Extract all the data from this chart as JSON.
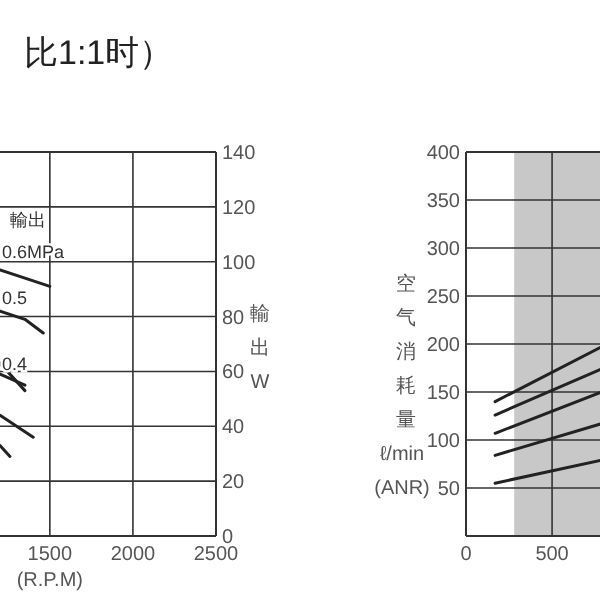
{
  "chart_data": [
    {
      "type": "line",
      "title": "比1:1时）",
      "xlabel": "(R.P.M)",
      "ylabel": "輸出W",
      "xlim": [
        1200,
        2500
      ],
      "xticks": [
        1500,
        2000,
        2500
      ],
      "ylim": [
        0,
        140
      ],
      "yticks": [
        0,
        20,
        40,
        60,
        80,
        100,
        120,
        140
      ],
      "grid": true,
      "series": [
        {
          "color": "#222222",
          "x": [
            1200,
            1350,
            1500
          ],
          "values": [
            97,
            94,
            91
          ]
        },
        {
          "color": "#222222",
          "x": [
            1200,
            1350,
            1460
          ],
          "values": [
            82,
            79,
            74
          ]
        },
        {
          "color": "#222222",
          "x": [
            1200,
            1350
          ],
          "values": [
            63,
            53
          ]
        },
        {
          "color": "#222222",
          "x": [
            1200,
            1350
          ],
          "values": [
            59,
            55
          ]
        },
        {
          "color": "#222222",
          "x": [
            1200,
            1400
          ],
          "values": [
            44,
            36
          ]
        },
        {
          "color": "#222222",
          "x": [
            1200,
            1260
          ],
          "values": [
            33,
            29
          ]
        }
      ],
      "annotations": [
        "輸出",
        "0.6MPa",
        "0.5",
        "0.4"
      ]
    },
    {
      "type": "line",
      "ylabel": "空气消耗量\nℓ/min\n(ANR)",
      "xlim": [
        0,
        790
      ],
      "xticks": [
        0,
        500
      ],
      "ylim": [
        0,
        400
      ],
      "yticks": [
        50,
        100,
        150,
        200,
        250,
        300,
        350,
        400
      ],
      "grid": true,
      "bands": [
        {
          "axis": "x",
          "from": 280,
          "to": 790,
          "color": "#c8c8c8"
        }
      ],
      "series": [
        {
          "color": "#222222",
          "x": [
            169,
            787
          ],
          "values": [
            140,
            197
          ]
        },
        {
          "color": "#222222",
          "x": [
            169,
            787
          ],
          "values": [
            126,
            174
          ]
        },
        {
          "color": "#222222",
          "x": [
            169,
            787
          ],
          "values": [
            107,
            150
          ]
        },
        {
          "color": "#222222",
          "x": [
            169,
            787
          ],
          "values": [
            84,
            117
          ]
        },
        {
          "color": "#222222",
          "x": [
            169,
            787
          ],
          "values": [
            55,
            79
          ]
        }
      ]
    }
  ]
}
